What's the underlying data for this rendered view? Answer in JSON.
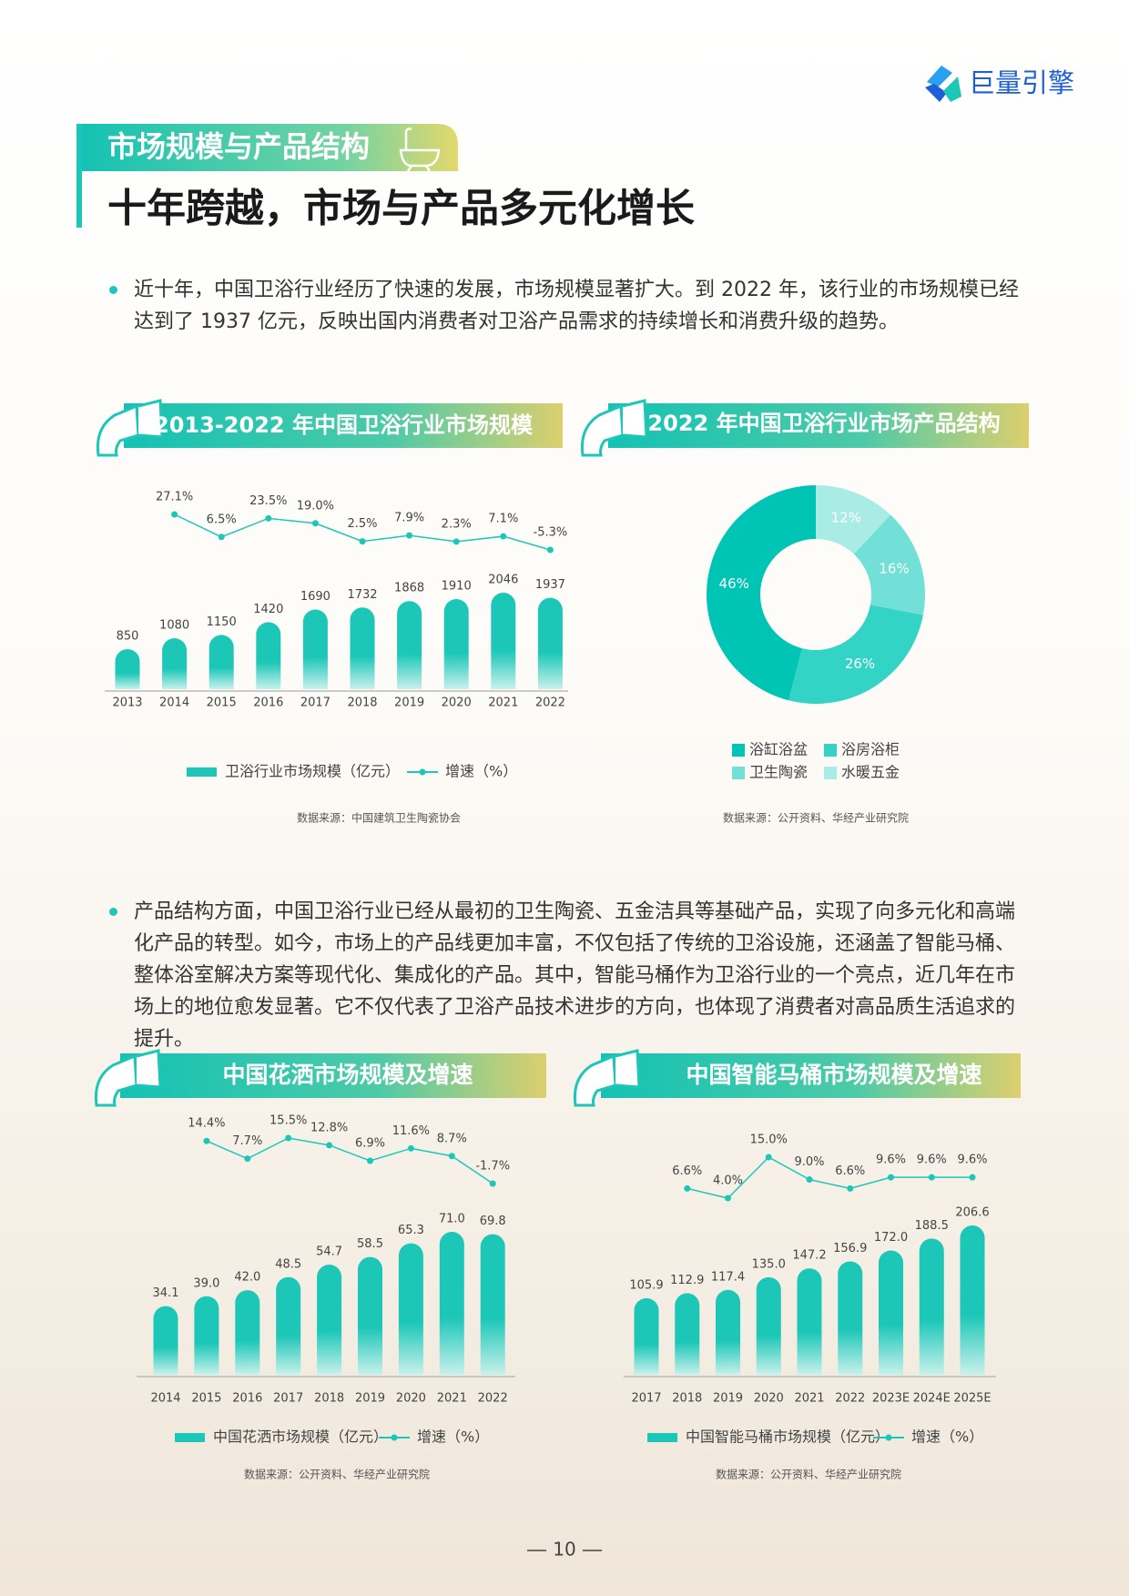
{
  "header": {
    "logo": "巨量引擎",
    "section_tag": "市场规模与产品结构",
    "title": "十年跨越，市场与产品多元化增长"
  },
  "paragraphs": [
    "近十年，中国卫浴行业经历了快速的发展，市场规模显著扩大。到 2022 年，该行业的市场规模已经达到了 1937 亿元，反映出国内消费者对卫浴产品需求的持续增长和消费升级的趋势。",
    "产品结构方面，中国卫浴行业已经从最初的卫生陶瓷、五金洁具等基础产品，实现了向多元化和高端化产品的转型。如今，市场上的产品线更加丰富，不仅包括了传统的卫浴设施，还涵盖了智能马桶、整体浴室解决方案等现代化、集成化的产品。其中，智能马桶作为卫浴行业的一个亮点，近几年在市场上的地位愈发显著。它不仅代表了卫浴产品技术进步的方向，也体现了消费者对高品质生活追求的提升。"
  ],
  "chart_data": [
    {
      "type": "bar-line",
      "title": "2013-2022 年中国卫浴行业市场规模",
      "categories": [
        "2013",
        "2014",
        "2015",
        "2016",
        "2017",
        "2018",
        "2019",
        "2020",
        "2021",
        "2022"
      ],
      "series": [
        {
          "name": "卫浴行业市场规模（亿元）",
          "type": "bar",
          "color": "#1cc7b8",
          "values": [
            850,
            1080,
            1150,
            1420,
            1690,
            1732,
            1868,
            1910,
            2046,
            1937
          ]
        },
        {
          "name": "增速（%）",
          "type": "line",
          "color": "#1cc7b8",
          "values": [
            null,
            27.1,
            6.5,
            23.5,
            19.0,
            2.5,
            7.9,
            2.3,
            7.1,
            -5.3
          ],
          "value_labels": [
            null,
            "27.1%",
            "6.5%",
            "23.5%",
            "19.0%",
            "2.5%",
            "7.9%",
            "2.3%",
            "7.1%",
            "-5.3%"
          ]
        }
      ],
      "source": "数据来源：中国建筑卫生陶瓷协会"
    },
    {
      "type": "donut",
      "title": "2022 年中国卫浴行业市场产品结构",
      "categories": [
        "浴缸浴盆",
        "浴房浴柜",
        "卫生陶瓷",
        "水暖五金"
      ],
      "values": [
        46,
        26,
        16,
        12
      ],
      "value_labels": [
        "46%",
        "26%",
        "16%",
        "12%"
      ],
      "colors": [
        "#00c4b4",
        "#33d3c6",
        "#72e0d7",
        "#a9ece6"
      ],
      "source": "数据来源：公开资料、华经产业研究院"
    },
    {
      "type": "bar-line",
      "title": "中国花洒市场规模及增速",
      "categories": [
        "2014",
        "2015",
        "2016",
        "2017",
        "2018",
        "2019",
        "2020",
        "2021",
        "2022"
      ],
      "series": [
        {
          "name": "中国花洒市场规模（亿元）",
          "type": "bar",
          "color": "#1cc7b8",
          "values": [
            34.1,
            39.0,
            42.0,
            48.5,
            54.7,
            58.5,
            65.3,
            71.0,
            69.8
          ],
          "value_labels": [
            "34.1",
            "39.0",
            "42.0",
            "48.5",
            "54.7",
            "58.5",
            "65.3",
            "71.0",
            "69.8"
          ]
        },
        {
          "name": "增速（%）",
          "type": "line",
          "color": "#1cc7b8",
          "values": [
            null,
            14.4,
            7.7,
            15.5,
            12.8,
            6.9,
            11.6,
            8.7,
            -1.7
          ],
          "value_labels": [
            null,
            "14.4%",
            "7.7%",
            "15.5%",
            "12.8%",
            "6.9%",
            "11.6%",
            "8.7%",
            "-1.7%"
          ]
        }
      ],
      "source": "数据来源：公开资料、华经产业研究院"
    },
    {
      "type": "bar-line",
      "title": "中国智能马桶市场规模及增速",
      "categories": [
        "2017",
        "2018",
        "2019",
        "2020",
        "2021",
        "2022",
        "2023E",
        "2024E",
        "2025E"
      ],
      "series": [
        {
          "name": "中国智能马桶市场规模（亿元）",
          "type": "bar",
          "color": "#1cc7b8",
          "values": [
            105.9,
            112.9,
            117.4,
            135.0,
            147.2,
            156.9,
            172.0,
            188.5,
            206.6
          ],
          "value_labels": [
            "105.9",
            "112.9",
            "117.4",
            "135.0",
            "147.2",
            "156.9",
            "172.0",
            "188.5",
            "206.6"
          ]
        },
        {
          "name": "增速（%）",
          "type": "line",
          "color": "#1cc7b8",
          "values": [
            null,
            6.6,
            4.0,
            15.0,
            9.0,
            6.6,
            9.6,
            9.6,
            9.6
          ],
          "value_labels": [
            null,
            "6.6%",
            "4.0%",
            "15.0%",
            "9.0%",
            "6.6%",
            "9.6%",
            "9.6%",
            "9.6%"
          ]
        }
      ],
      "source": "数据来源：公开资料、华经产业研究院"
    }
  ],
  "footer": {
    "page": "10"
  }
}
